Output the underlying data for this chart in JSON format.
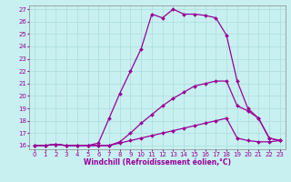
{
  "bg_color": "#c8f0f0",
  "line_color": "#990099",
  "xmin": 0,
  "xmax": 23,
  "ymin": 16,
  "ymax": 27,
  "series1": [
    [
      0,
      16.0
    ],
    [
      1,
      16.0
    ],
    [
      2,
      16.1
    ],
    [
      3,
      16.0
    ],
    [
      4,
      16.0
    ],
    [
      5,
      16.0
    ],
    [
      6,
      16.2
    ],
    [
      7,
      18.2
    ],
    [
      8,
      20.2
    ],
    [
      9,
      22.0
    ],
    [
      10,
      23.8
    ],
    [
      11,
      26.6
    ],
    [
      12,
      26.3
    ],
    [
      13,
      27.0
    ],
    [
      14,
      26.6
    ],
    [
      15,
      26.6
    ],
    [
      16,
      26.5
    ],
    [
      17,
      26.3
    ],
    [
      18,
      24.9
    ],
    [
      19,
      21.2
    ],
    [
      20,
      19.0
    ],
    [
      21,
      18.2
    ],
    [
      22,
      16.6
    ],
    [
      23,
      16.4
    ]
  ],
  "series2": [
    [
      0,
      16.0
    ],
    [
      1,
      16.0
    ],
    [
      2,
      16.1
    ],
    [
      3,
      16.0
    ],
    [
      4,
      16.0
    ],
    [
      5,
      16.0
    ],
    [
      6,
      16.0
    ],
    [
      7,
      16.0
    ],
    [
      8,
      16.3
    ],
    [
      9,
      17.0
    ],
    [
      10,
      17.8
    ],
    [
      11,
      18.5
    ],
    [
      12,
      19.2
    ],
    [
      13,
      19.8
    ],
    [
      14,
      20.3
    ],
    [
      15,
      20.8
    ],
    [
      16,
      21.0
    ],
    [
      17,
      21.2
    ],
    [
      18,
      21.2
    ],
    [
      19,
      19.2
    ],
    [
      20,
      18.8
    ],
    [
      21,
      18.2
    ],
    [
      22,
      16.6
    ],
    [
      23,
      16.4
    ]
  ],
  "series3": [
    [
      0,
      16.0
    ],
    [
      1,
      16.0
    ],
    [
      2,
      16.1
    ],
    [
      3,
      16.0
    ],
    [
      4,
      16.0
    ],
    [
      5,
      16.0
    ],
    [
      6,
      16.0
    ],
    [
      7,
      16.0
    ],
    [
      8,
      16.2
    ],
    [
      9,
      16.4
    ],
    [
      10,
      16.6
    ],
    [
      11,
      16.8
    ],
    [
      12,
      17.0
    ],
    [
      13,
      17.2
    ],
    [
      14,
      17.4
    ],
    [
      15,
      17.6
    ],
    [
      16,
      17.8
    ],
    [
      17,
      18.0
    ],
    [
      18,
      18.2
    ],
    [
      19,
      16.6
    ],
    [
      20,
      16.4
    ],
    [
      21,
      16.3
    ],
    [
      22,
      16.3
    ],
    [
      23,
      16.4
    ]
  ],
  "xlabel": "Windchill (Refroidissement éolien,°C)",
  "xticks": [
    0,
    1,
    2,
    3,
    4,
    5,
    6,
    7,
    8,
    9,
    10,
    11,
    12,
    13,
    14,
    15,
    16,
    17,
    18,
    19,
    20,
    21,
    22,
    23
  ],
  "yticks": [
    16,
    17,
    18,
    19,
    20,
    21,
    22,
    23,
    24,
    25,
    26,
    27
  ],
  "grid_color": "#aadddd",
  "marker": "D",
  "markersize": 2.0,
  "linewidth": 0.9,
  "axis_fontsize": 5.5,
  "tick_fontsize": 5.0
}
